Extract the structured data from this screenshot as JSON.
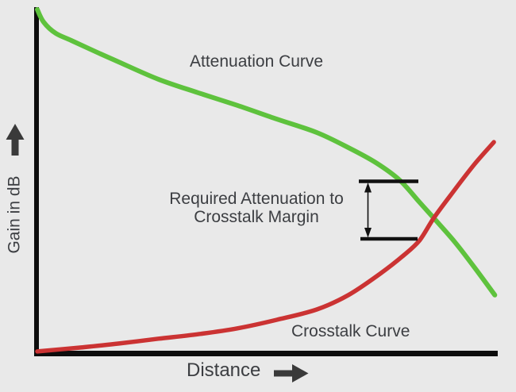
{
  "figure": {
    "background_color": "#e9e9e9",
    "text_color": "#3c3e42",
    "axis_color": "#0d0d0d",
    "arrow_color": "#3a3a3a",
    "annotation_line_color": "#111111"
  },
  "labels": {
    "attenuation_curve": "Attenuation Curve",
    "crosstalk_curve": "Crosstalk Curve",
    "annotation_line1": "Required Attenuation to",
    "annotation_line2": "Crosstalk Margin",
    "x_axis": "Distance",
    "y_axis": "Gain in dB"
  },
  "icons": {
    "y_axis_arrow": "up-arrow",
    "x_axis_arrow": "right-arrow",
    "margin_arrow": "vertical-double-arrow"
  },
  "chart_data": {
    "type": "line",
    "title": "",
    "xlabel": "Distance",
    "ylabel": "Gain in dB",
    "grid": false,
    "legend": "inline-labels",
    "axes_numeric": false,
    "x_range_percent": [
      0,
      100
    ],
    "y_range_percent": [
      0,
      100
    ],
    "series": [
      {
        "name": "Attenuation Curve",
        "color": "#5ec23d",
        "stroke_width": 6,
        "points": [
          [
            0,
            100
          ],
          [
            1.4,
            96.3
          ],
          [
            4,
            93.1
          ],
          [
            7.4,
            91.0
          ],
          [
            12.6,
            87.8
          ],
          [
            17.8,
            84.7
          ],
          [
            26.4,
            79.7
          ],
          [
            35,
            75.8
          ],
          [
            43.6,
            72.1
          ],
          [
            52.2,
            68.1
          ],
          [
            60.9,
            64.2
          ],
          [
            67.8,
            59.8
          ],
          [
            73.8,
            55.4
          ],
          [
            79,
            50.3
          ],
          [
            83.3,
            43.9
          ],
          [
            86.4,
            39.3
          ],
          [
            91,
            32.3
          ],
          [
            95.3,
            24.9
          ],
          [
            99.7,
            16.9
          ]
        ]
      },
      {
        "name": "Crosstalk Curve",
        "color": "#cb3333",
        "stroke_width": 5.5,
        "points": [
          [
            0,
            0.5
          ],
          [
            9.1,
            1.6
          ],
          [
            17.8,
            2.8
          ],
          [
            26.4,
            4.2
          ],
          [
            35,
            5.5
          ],
          [
            43.6,
            7.2
          ],
          [
            52.2,
            9.7
          ],
          [
            60.9,
            12.7
          ],
          [
            67.8,
            16.9
          ],
          [
            74.7,
            23.1
          ],
          [
            79.8,
            28.4
          ],
          [
            83.3,
            32.8
          ],
          [
            86.4,
            39.3
          ],
          [
            90.2,
            46.2
          ],
          [
            95.3,
            55.0
          ],
          [
            99.5,
            61.4
          ]
        ]
      }
    ],
    "annotations": [
      {
        "text": "Required Attenuation to Crosstalk Margin",
        "type": "double-arrow-span-between-bars",
        "x_percent": 71.8,
        "bar_x_span_percent": [
          69.8,
          82.8
        ],
        "y_top_percent": 50.1,
        "y_bottom_percent": 33.3
      }
    ],
    "crossover_point_percent": [
      86.4,
      39.3
    ]
  }
}
